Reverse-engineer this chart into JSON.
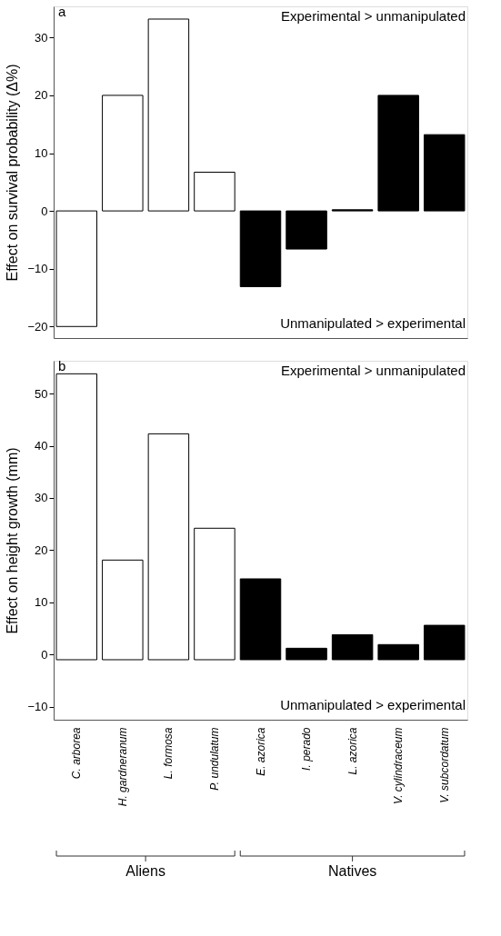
{
  "chart_data": [
    {
      "type": "bar",
      "title": "a",
      "ylabel": "Effect on survival probability (Δ%)",
      "categories": [
        null,
        null,
        null,
        null,
        null,
        null,
        null,
        null,
        null
      ],
      "values": [
        -20,
        20,
        33.2,
        6.7,
        -13.1,
        -6.6,
        0.2,
        20,
        13.2
      ],
      "colors": [
        "#ffffff",
        "#ffffff",
        "#ffffff",
        "#ffffff",
        "#000000",
        "#000000",
        "#000000",
        "#000000",
        "#000000"
      ],
      "ylim": [
        -22,
        35.4
      ],
      "yticks": [
        -20,
        -10,
        0,
        10,
        20,
        30
      ],
      "tick_labels": "y",
      "annotations": [
        "Experimental > unmanipulated",
        "Unmanipulated > experimental"
      ]
    },
    {
      "type": "bar",
      "title": "b",
      "ylabel": "Effect on height growth (mm)",
      "categories": [
        "C. arborea",
        "H. gardneranum",
        "L. formosa",
        "P. undulatum",
        "E. azorica",
        "I. perado",
        "L. azorica",
        "V. cylindraceum",
        "V. subcordatum"
      ],
      "values": [
        54.8,
        19.1,
        43.3,
        25.2,
        15.5,
        2.2,
        4.8,
        2.9,
        6.6
      ],
      "base": [
        -1,
        -1,
        -1,
        -1,
        -1,
        -1,
        -1,
        -1,
        -1
      ],
      "colors": [
        "#ffffff",
        "#ffffff",
        "#ffffff",
        "#ffffff",
        "#000000",
        "#000000",
        "#000000",
        "#000000",
        "#000000"
      ],
      "ylim": [
        -12.5,
        56.3
      ],
      "yticks": [
        -10,
        0,
        10,
        20,
        30,
        40,
        50
      ],
      "annotations": [
        "Experimental > unmanipulated",
        "Unmanipulated > experimental",
        "Aliens",
        "Natives"
      ]
    }
  ]
}
